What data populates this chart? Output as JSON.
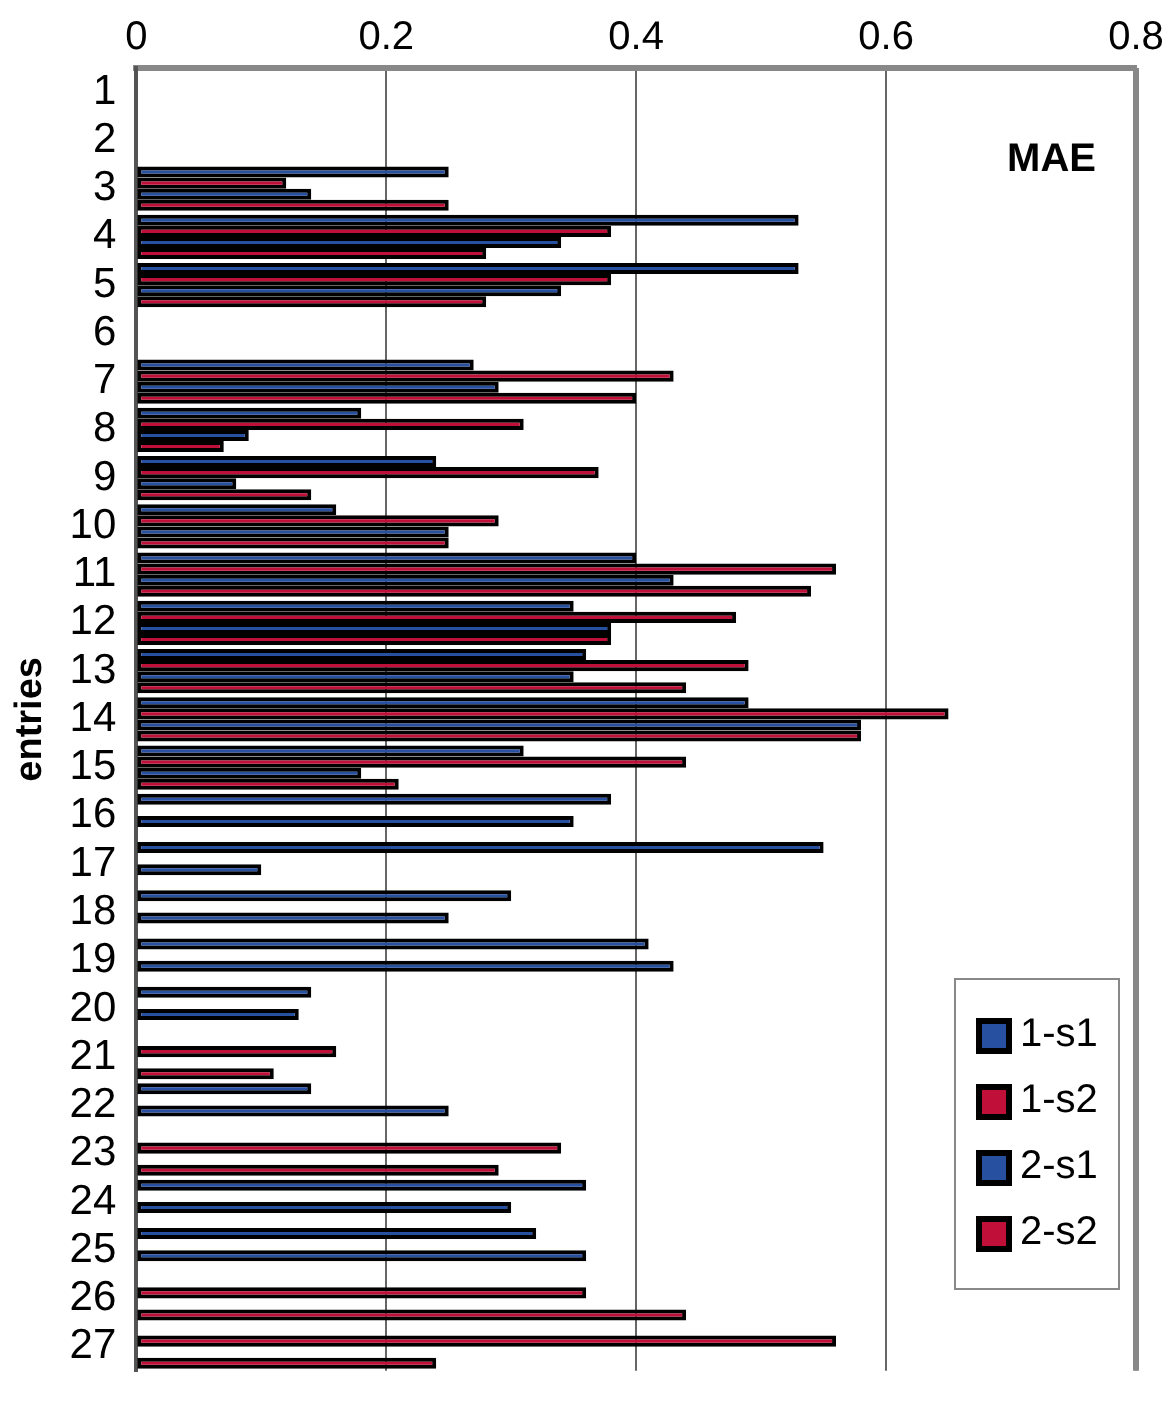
{
  "chart_data": {
    "type": "bar",
    "orientation": "horizontal",
    "ylabel": "entries",
    "annotations": [
      "MAE"
    ],
    "categories": [
      "1",
      "2",
      "3",
      "4",
      "5",
      "6",
      "7",
      "8",
      "9",
      "10",
      "11",
      "12",
      "13",
      "14",
      "15",
      "16",
      "17",
      "18",
      "19",
      "20",
      "21",
      "22",
      "23",
      "24",
      "25",
      "26",
      "27"
    ],
    "series": [
      {
        "name": "1-s1",
        "color": "#2850a0",
        "values": [
          null,
          null,
          0.25,
          0.53,
          0.53,
          null,
          0.27,
          0.18,
          0.24,
          0.16,
          0.4,
          0.35,
          0.36,
          0.49,
          0.31,
          0.38,
          0.55,
          0.3,
          0.41,
          0.14,
          null,
          0.14,
          null,
          0.36,
          0.32,
          null,
          null
        ]
      },
      {
        "name": "1-s2",
        "color": "#c0103a",
        "values": [
          null,
          null,
          0.12,
          0.38,
          0.38,
          null,
          0.43,
          0.31,
          0.37,
          0.29,
          0.56,
          0.48,
          0.49,
          0.65,
          0.44,
          null,
          null,
          null,
          null,
          null,
          0.16,
          null,
          0.34,
          null,
          null,
          0.36,
          0.56
        ]
      },
      {
        "name": "2-s1",
        "color": "#2850a0",
        "values": [
          null,
          null,
          0.14,
          0.34,
          0.34,
          null,
          0.29,
          0.09,
          0.08,
          0.25,
          0.43,
          0.38,
          0.35,
          0.58,
          0.18,
          0.35,
          0.1,
          0.25,
          0.43,
          0.13,
          null,
          0.25,
          null,
          0.3,
          0.36,
          null,
          null
        ]
      },
      {
        "name": "2-s2",
        "color": "#c0103a",
        "values": [
          null,
          null,
          0.25,
          0.28,
          0.28,
          null,
          0.4,
          0.07,
          0.14,
          0.25,
          0.54,
          0.38,
          0.44,
          0.58,
          0.21,
          null,
          null,
          null,
          null,
          null,
          0.11,
          null,
          0.29,
          null,
          null,
          0.44,
          0.24
        ]
      }
    ],
    "xlim": [
      0,
      0.8
    ],
    "xticks": [
      0,
      0.2,
      0.4,
      0.6,
      0.8
    ],
    "grid": "x",
    "legend": "bottom right"
  }
}
